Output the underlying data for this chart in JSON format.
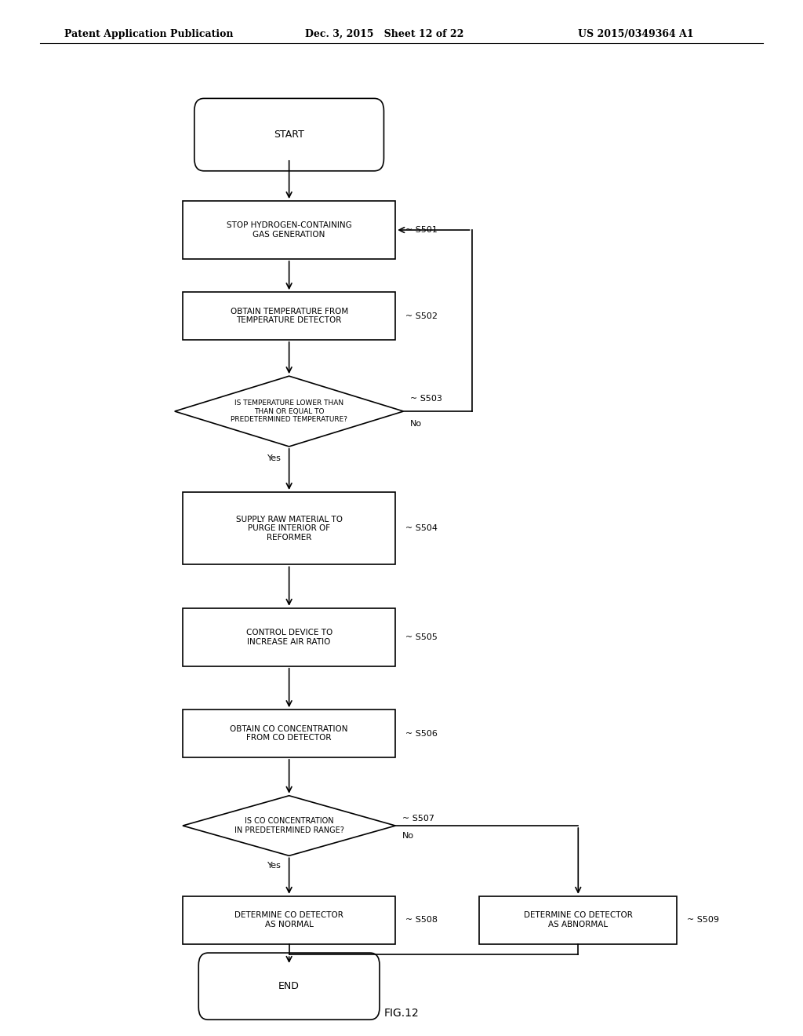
{
  "header_left": "Patent Application Publication",
  "header_mid": "Dec. 3, 2015   Sheet 12 of 22",
  "header_right": "US 2015/0349364 A1",
  "figure_label": "FIG.12",
  "background_color": "#ffffff"
}
